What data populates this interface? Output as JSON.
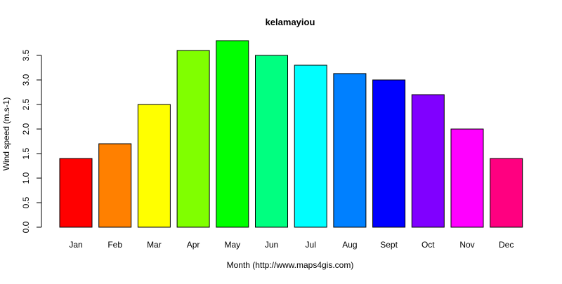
{
  "chart_data": {
    "type": "bar",
    "title": "kelamayiou",
    "xlabel": "Month (http://www.maps4gis.com)",
    "ylabel": "Wind speed (m.s-1)",
    "categories": [
      "Jan",
      "Feb",
      "Mar",
      "Apr",
      "May",
      "Jun",
      "Jul",
      "Aug",
      "Sept",
      "Oct",
      "Nov",
      "Dec"
    ],
    "values": [
      1.4,
      1.7,
      2.5,
      3.6,
      3.8,
      3.5,
      3.3,
      3.13,
      3.0,
      2.7,
      2.0,
      1.4
    ],
    "colors": [
      "#ff0000",
      "#ff8000",
      "#ffff00",
      "#80ff00",
      "#00ff00",
      "#00ff80",
      "#00ffff",
      "#0080ff",
      "#0000ff",
      "#8000ff",
      "#ff00ff",
      "#ff0080"
    ],
    "yticks": [
      "0.0",
      "0.5",
      "1.0",
      "1.5",
      "2.0",
      "2.5",
      "3.0",
      "3.5"
    ],
    "ylim": [
      0,
      3.8
    ],
    "grid": false,
    "legend": "none"
  }
}
